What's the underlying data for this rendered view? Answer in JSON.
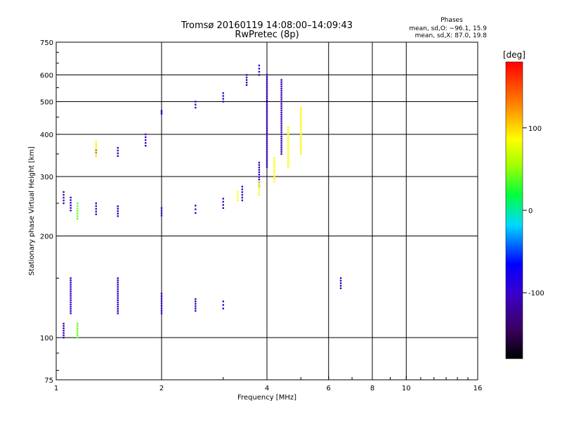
{
  "chart_data": {
    "type": "scatter",
    "title": "Tromsø 20160119 14:08:00–14:09:43",
    "subtitle": "RwPretec (8p)",
    "stats": {
      "heading": "Phases",
      "line1": "mean, sd,O:  −96.1, 15.9",
      "line2": "mean, sd,X:   87.0, 19.8"
    },
    "xlabel": "Frequency [MHz]",
    "ylabel": "Stationary phase Virtual Height [km]",
    "x_scale": "log",
    "y_scale": "log",
    "xlim": [
      1,
      16
    ],
    "ylim": [
      75,
      750
    ],
    "x_ticks": [
      1,
      2,
      4,
      6,
      8,
      10,
      16
    ],
    "x_minor_ticks": [
      3,
      5,
      7,
      9,
      11,
      12,
      13,
      14,
      15
    ],
    "y_ticks": [
      75,
      100,
      200,
      300,
      400,
      500,
      600,
      750
    ],
    "y_minor_ticks": [
      80,
      90,
      150,
      250,
      350,
      450,
      550,
      650,
      700
    ],
    "grid": true,
    "colorbar": {
      "label": "[deg]",
      "min": -180,
      "max": 180,
      "ticks": [
        100,
        0,
        -100
      ],
      "colormap": "rainbow"
    },
    "series": [
      {
        "values": [
          {
            "x": 1.05,
            "y_range": [
              250,
              270
            ],
            "phase": -110
          },
          {
            "x": 1.1,
            "y_range": [
              238,
              260
            ],
            "phase": -100
          },
          {
            "x": 1.3,
            "y_range": [
              232,
              250
            ],
            "phase": -105
          },
          {
            "x": 1.5,
            "y_range": [
              229,
              245
            ],
            "phase": -110
          },
          {
            "x": 2.0,
            "y_range": [
              230,
              242
            ],
            "phase": -105
          },
          {
            "x": 2.5,
            "y_range": [
              234,
              246
            ],
            "phase": -100
          },
          {
            "x": 3.0,
            "y_range": [
              242,
              258
            ],
            "phase": -105
          },
          {
            "x": 3.4,
            "y_range": [
              255,
              280
            ],
            "phase": -100
          },
          {
            "x": 3.8,
            "y_range": [
              280,
              330
            ],
            "phase": -105
          },
          {
            "x": 4.0,
            "y_range": [
              320,
              600
            ],
            "phase": -100
          },
          {
            "x": 4.4,
            "y_range": [
              350,
              580
            ],
            "phase": -110
          },
          {
            "x": 1.3,
            "y_range": [
              345,
              360
            ],
            "phase": -110
          },
          {
            "x": 1.5,
            "y_range": [
              345,
              365
            ],
            "phase": -110
          },
          {
            "x": 1.8,
            "y_range": [
              370,
              400
            ],
            "phase": -110
          },
          {
            "x": 2.0,
            "y_range": [
              460,
              470
            ],
            "phase": -100
          },
          {
            "x": 2.5,
            "y_range": [
              480,
              500
            ],
            "phase": -100
          },
          {
            "x": 3.0,
            "y_range": [
              500,
              530
            ],
            "phase": -100
          },
          {
            "x": 3.5,
            "y_range": [
              560,
              600
            ],
            "phase": -110
          },
          {
            "x": 3.8,
            "y_range": [
              600,
              640
            ],
            "phase": -110
          },
          {
            "x": 1.1,
            "y_range": [
              118,
              150
            ],
            "phase": -100
          },
          {
            "x": 1.5,
            "y_range": [
              118,
              150
            ],
            "phase": -100
          },
          {
            "x": 2.0,
            "y_range": [
              118,
              135
            ],
            "phase": -100
          },
          {
            "x": 2.5,
            "y_range": [
              120,
              130
            ],
            "phase": -100
          },
          {
            "x": 3.0,
            "y_range": [
              122,
              128
            ],
            "phase": -80
          },
          {
            "x": 1.05,
            "y_range": [
              100,
              110
            ],
            "phase": -110
          },
          {
            "x": 6.5,
            "y_range": [
              140,
              150
            ],
            "phase": -110
          }
        ]
      },
      {
        "values": [
          {
            "x": 3.3,
            "y_range": [
              255,
              270
            ],
            "phase": 85
          },
          {
            "x": 3.8,
            "y_range": [
              265,
              290
            ],
            "phase": 90
          },
          {
            "x": 4.2,
            "y_range": [
              290,
              340
            ],
            "phase": 88
          },
          {
            "x": 4.6,
            "y_range": [
              320,
              420
            ],
            "phase": 85
          },
          {
            "x": 5.0,
            "y_range": [
              350,
              480
            ],
            "phase": 90
          },
          {
            "x": 1.3,
            "y_range": [
              345,
              380
            ],
            "phase": 90
          },
          {
            "x": 1.15,
            "y_range": [
              225,
              250
            ],
            "phase": 40
          },
          {
            "x": 1.15,
            "y_range": [
              100,
              110
            ],
            "phase": 40
          }
        ]
      }
    ]
  }
}
